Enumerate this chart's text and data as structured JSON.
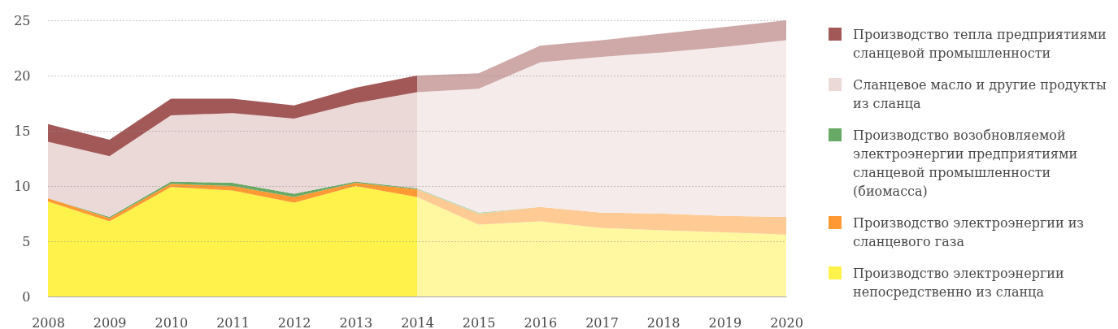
{
  "chart_data": {
    "type": "area",
    "stacked": true,
    "x": [
      2008,
      2009,
      2010,
      2011,
      2012,
      2013,
      2014,
      2015,
      2016,
      2017,
      2018,
      2019,
      2020
    ],
    "xlim": [
      2008,
      2020
    ],
    "xticks": [
      2008,
      2009,
      2010,
      2011,
      2012,
      2013,
      2014,
      2015,
      2016,
      2017,
      2018,
      2019,
      2020
    ],
    "ylim": [
      0,
      25
    ],
    "yticks": [
      0,
      5,
      10,
      15,
      20,
      25
    ],
    "grid": "y",
    "legend": "right",
    "bands": [
      {
        "axis": "x",
        "from": 2014,
        "to": 2020,
        "color": "#ffffff"
      }
    ],
    "series": [
      {
        "name": "Производство электроэнергии непосредственно из сланца",
        "color": "#fff24a",
        "values": [
          8.6,
          6.8,
          9.9,
          9.6,
          8.5,
          10.0,
          9.0,
          6.5,
          6.8,
          6.2,
          6.0,
          5.8,
          5.6
        ]
      },
      {
        "name": "Производство электроэнергии из сланцевого газа",
        "color": "#ff9933",
        "values": [
          0.3,
          0.3,
          0.3,
          0.4,
          0.5,
          0.3,
          0.7,
          1.0,
          1.3,
          1.4,
          1.5,
          1.5,
          1.6
        ]
      },
      {
        "name": "Производство возобновляемой электроэнергии предприятиями сланцевой промышленности (биомасса)",
        "color": "#69a966",
        "values": [
          0,
          0.1,
          0.2,
          0.3,
          0.3,
          0.1,
          0.1,
          0.1,
          0,
          0,
          0,
          0,
          0
        ]
      },
      {
        "name": "Сланцевое масло и другие продукты из сланца",
        "color": "#ebd9d7",
        "values": [
          5.1,
          5.5,
          6.0,
          6.3,
          6.8,
          7.1,
          8.7,
          11.2,
          13.1,
          14.1,
          14.6,
          15.3,
          16.0
        ]
      },
      {
        "name": "Производство тепла предприятиями сланцевой промышленности",
        "color": "#a35858",
        "values": [
          1.6,
          1.5,
          1.5,
          1.3,
          1.2,
          1.4,
          1.5,
          1.4,
          1.5,
          1.5,
          1.7,
          1.8,
          1.8
        ]
      }
    ]
  }
}
